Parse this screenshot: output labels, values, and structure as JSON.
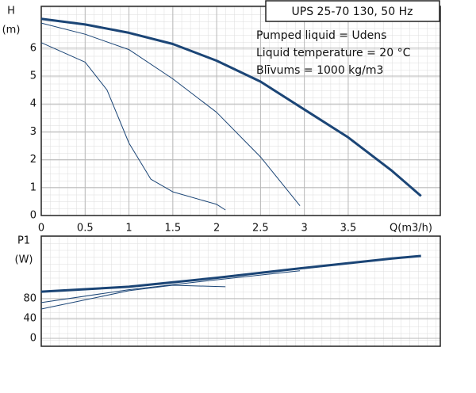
{
  "chart_data": [
    {
      "type": "line",
      "title": "UPS 25-70 130, 50 Hz",
      "annotations": [
        "Pumped liquid = Udens",
        "Liquid temperature = 20 °C",
        "Blīvums = 1000 kg/m3"
      ],
      "y_label": "H",
      "y_unit": "(m)",
      "x_label": "Q(m3/h)",
      "xlim": [
        0,
        4.55
      ],
      "ylim": [
        0,
        7.5
      ],
      "xticks": [
        0,
        0.5,
        1,
        1.5,
        2,
        2.5,
        3,
        3.5
      ],
      "yticks": [
        0,
        1,
        2,
        3,
        4,
        5,
        6
      ],
      "grid": true,
      "series": [
        {
          "color": "#1b4576",
          "width": 3,
          "x": [
            0,
            0.5,
            1,
            1.5,
            2,
            2.5,
            3,
            3.5,
            4,
            4.33
          ],
          "values": [
            7.05,
            6.85,
            6.55,
            6.15,
            5.55,
            4.8,
            3.8,
            2.8,
            1.6,
            0.7
          ]
        },
        {
          "color": "#1b4576",
          "width": 1,
          "x": [
            0,
            0.5,
            1,
            1.5,
            2,
            2.5,
            2.95
          ],
          "values": [
            6.9,
            6.5,
            5.95,
            4.9,
            3.7,
            2.1,
            0.35
          ]
        },
        {
          "color": "#1b4576",
          "width": 1,
          "x": [
            0,
            0.5,
            0.75,
            1,
            1.25,
            1.5,
            2,
            2.1
          ],
          "values": [
            6.2,
            5.5,
            4.5,
            2.6,
            1.3,
            0.85,
            0.4,
            0.2
          ]
        }
      ]
    },
    {
      "type": "line",
      "y_label": "P1",
      "y_unit": "(W)",
      "xlim": [
        0,
        4.55
      ],
      "ylim": [
        -16,
        206
      ],
      "yticks": [
        0,
        40,
        80
      ],
      "grid": true,
      "series": [
        {
          "color": "#1b4576",
          "width": 3,
          "x": [
            0,
            1,
            2,
            3,
            4,
            4.33
          ],
          "values": [
            94,
            104,
            122,
            142,
            161,
            166
          ]
        },
        {
          "color": "#1b4576",
          "width": 1,
          "x": [
            0,
            1,
            2,
            2.95
          ],
          "values": [
            72,
            98,
            118,
            136
          ]
        },
        {
          "color": "#1b4576",
          "width": 1,
          "x": [
            0,
            1,
            1.5,
            2.1
          ],
          "values": [
            59,
            96,
            107,
            104
          ]
        }
      ]
    }
  ]
}
